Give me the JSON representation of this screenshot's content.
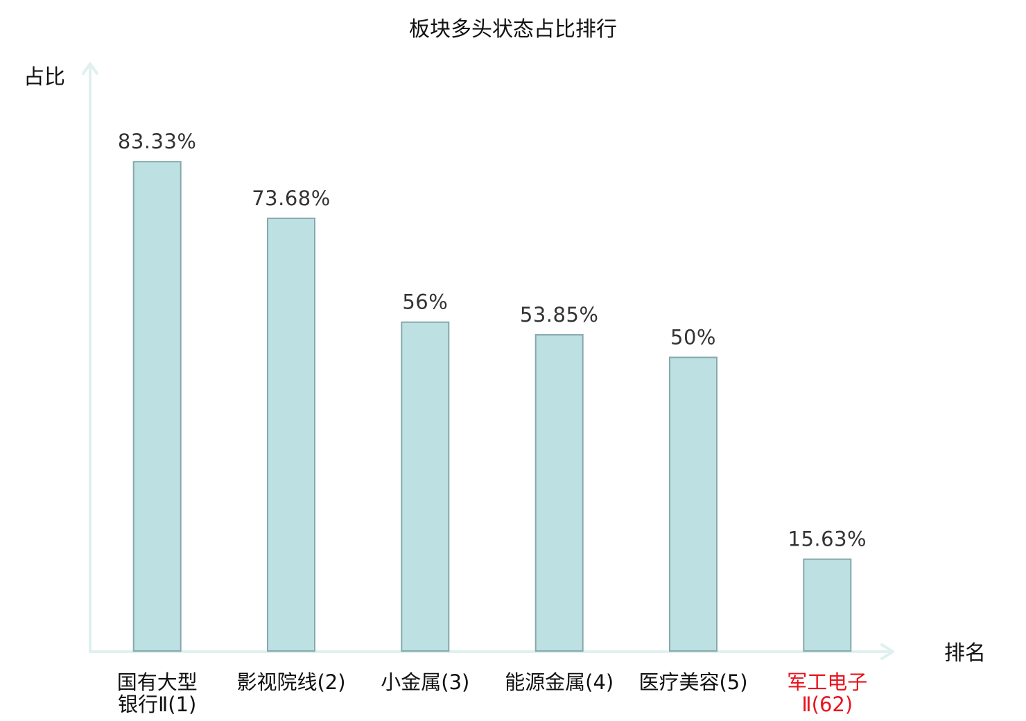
{
  "chart_data": {
    "type": "bar",
    "title": "板块多头状态占比排行",
    "xlabel": "排名",
    "ylabel": "占比",
    "categories": [
      [
        "国有大型",
        "银行Ⅱ(1)"
      ],
      [
        "影视院线(2)"
      ],
      [
        "小金属(3)"
      ],
      [
        "能源金属(4)"
      ],
      [
        "医疗美容(5)"
      ],
      [
        "军工电子",
        "Ⅱ(62)"
      ]
    ],
    "values": [
      83.33,
      73.68,
      56,
      53.85,
      50,
      15.63
    ],
    "value_labels": [
      "83.33%",
      "73.68%",
      "56%",
      "53.85%",
      "50%",
      "15.63%"
    ],
    "highlight_index": 5,
    "ylim": [
      0,
      100
    ],
    "grid": false,
    "legend": "none"
  },
  "colors": {
    "bar_fill": "#bde0e2",
    "bar_stroke": "#86a9ab",
    "axis": "#dff1ee",
    "highlight_text": "#e8141e",
    "value_text": "#333333",
    "label_text": "#111111"
  }
}
